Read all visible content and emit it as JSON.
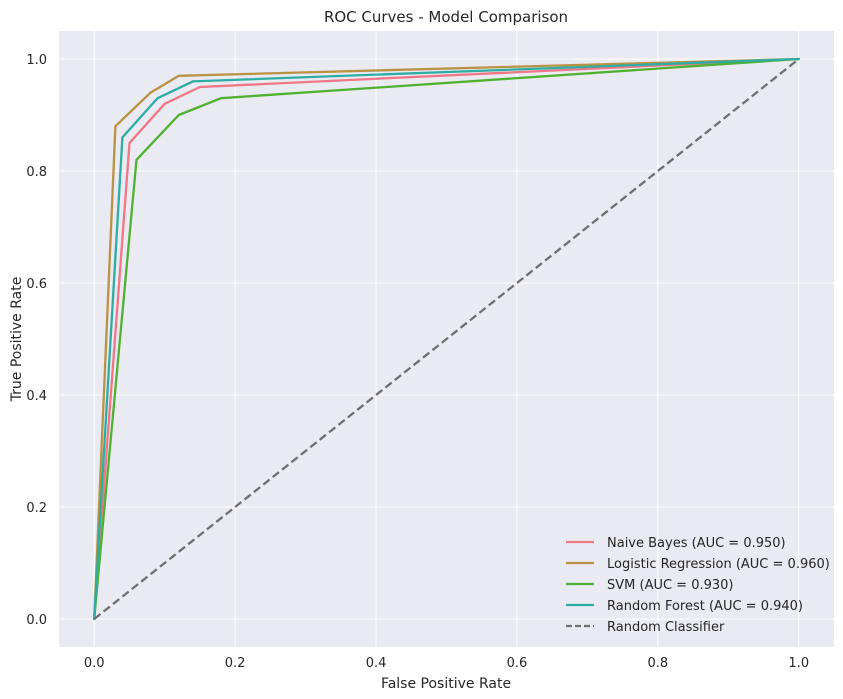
{
  "chart_data": {
    "type": "line",
    "title": "ROC Curves - Model Comparison",
    "xlabel": "False Positive Rate",
    "ylabel": "True Positive Rate",
    "xlim": [
      -0.05,
      1.05
    ],
    "ylim": [
      -0.05,
      1.05
    ],
    "xticks": [
      0.0,
      0.2,
      0.4,
      0.6,
      0.8,
      1.0
    ],
    "yticks": [
      0.0,
      0.2,
      0.4,
      0.6,
      0.8,
      1.0
    ],
    "xtick_labels": [
      "0.0",
      "0.2",
      "0.4",
      "0.6",
      "0.8",
      "1.0"
    ],
    "ytick_labels": [
      "0.0",
      "0.2",
      "0.4",
      "0.6",
      "0.8",
      "1.0"
    ],
    "grid": true,
    "background": "#eaeaf2",
    "legend_position": "lower-right",
    "series": [
      {
        "name": "Naive Bayes (AUC = 0.950)",
        "color": "#f07786",
        "dashed": false,
        "x": [
          0.0,
          0.05,
          0.1,
          0.15,
          1.0
        ],
        "y": [
          0.0,
          0.85,
          0.92,
          0.95,
          1.0
        ]
      },
      {
        "name": "Logistic Regression (AUC = 0.960)",
        "color": "#b99243",
        "dashed": false,
        "x": [
          0.0,
          0.03,
          0.08,
          0.12,
          1.0
        ],
        "y": [
          0.0,
          0.88,
          0.94,
          0.97,
          1.0
        ]
      },
      {
        "name": "SVM (AUC = 0.930)",
        "color": "#4fb12f",
        "dashed": false,
        "x": [
          0.0,
          0.06,
          0.12,
          0.18,
          1.0
        ],
        "y": [
          0.0,
          0.82,
          0.9,
          0.93,
          1.0
        ]
      },
      {
        "name": "Random Forest (AUC = 0.940)",
        "color": "#2fada4",
        "dashed": false,
        "x": [
          0.0,
          0.04,
          0.09,
          0.14,
          1.0
        ],
        "y": [
          0.0,
          0.86,
          0.93,
          0.96,
          1.0
        ]
      },
      {
        "name": "Random Classifier",
        "color": "#6f6f6f",
        "dashed": true,
        "x": [
          0.0,
          1.0
        ],
        "y": [
          0.0,
          1.0
        ]
      }
    ]
  }
}
